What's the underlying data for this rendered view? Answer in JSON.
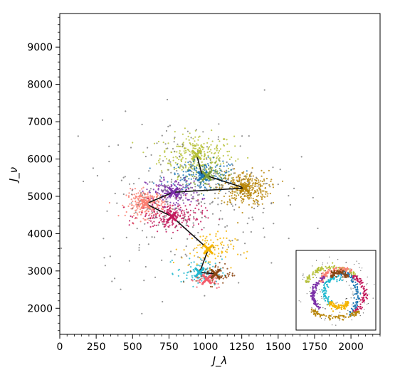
{
  "chart_data": {
    "type": "scatter",
    "title": "",
    "xlabel": "J_λ",
    "ylabel": "J_ν",
    "xlim": [
      0,
      2200
    ],
    "ylim": [
      1300,
      9900
    ],
    "x_ticks": [
      0,
      250,
      500,
      750,
      1000,
      1250,
      1500,
      1750,
      2000
    ],
    "y_ticks": [
      2000,
      3000,
      4000,
      5000,
      6000,
      7000,
      8000,
      9000
    ],
    "grid": false,
    "legend": "none",
    "clusters": [
      {
        "color": "#b7c23a",
        "center": [
          940,
          6110
        ],
        "spread": [
          230,
          520
        ],
        "count": 260
      },
      {
        "color": "#7d9d3a",
        "center": [
          1010,
          5550
        ],
        "spread": [
          170,
          330
        ],
        "count": 110
      },
      {
        "color": "#1f77b4",
        "center": [
          980,
          5540
        ],
        "spread": [
          230,
          380
        ],
        "count": 150
      },
      {
        "color": "#b8860b",
        "center": [
          1270,
          5220
        ],
        "spread": [
          150,
          420
        ],
        "count": 320
      },
      {
        "color": "#7b2fa8",
        "center": [
          780,
          5110
        ],
        "spread": [
          170,
          330
        ],
        "count": 170
      },
      {
        "color": "#fa8072",
        "center": [
          590,
          4800
        ],
        "spread": [
          120,
          330
        ],
        "count": 240
      },
      {
        "color": "#c2185b",
        "center": [
          770,
          4460
        ],
        "spread": [
          200,
          350
        ],
        "count": 210
      },
      {
        "color": "#f4b400",
        "center": [
          1020,
          3580
        ],
        "spread": [
          170,
          420
        ],
        "count": 90
      },
      {
        "color": "#22b8cf",
        "center": [
          960,
          2960
        ],
        "spread": [
          140,
          320
        ],
        "count": 80
      },
      {
        "color": "#8b4513",
        "center": [
          1070,
          2920
        ],
        "spread": [
          120,
          260
        ],
        "count": 60
      },
      {
        "color": "#f25c6b",
        "center": [
          1010,
          2780
        ],
        "spread": [
          110,
          230
        ],
        "count": 40
      },
      {
        "color": "#7f7f7f",
        "center": [
          900,
          5000
        ],
        "spread": [
          580,
          1900
        ],
        "count": 300
      }
    ],
    "path": [
      [
        940,
        6110
      ],
      [
        980,
        5540
      ],
      [
        1010,
        5550
      ],
      [
        1270,
        5220
      ],
      [
        780,
        5110
      ],
      [
        590,
        4800
      ],
      [
        770,
        4460
      ],
      [
        1020,
        3580
      ],
      [
        960,
        2960
      ],
      [
        1070,
        2920
      ],
      [
        1010,
        2780
      ]
    ],
    "path_markers": [
      {
        "x": 940,
        "y": 6110,
        "color": "#b7c23a"
      },
      {
        "x": 980,
        "y": 5540,
        "color": "#1f77b4"
      },
      {
        "x": 1010,
        "y": 5550,
        "color": "#7d9d3a"
      },
      {
        "x": 1270,
        "y": 5220,
        "color": "#b8860b"
      },
      {
        "x": 780,
        "y": 5110,
        "color": "#7b2fa8"
      },
      {
        "x": 590,
        "y": 4800,
        "color": "#fa8072"
      },
      {
        "x": 770,
        "y": 4460,
        "color": "#c2185b"
      },
      {
        "x": 1020,
        "y": 3580,
        "color": "#f4b400"
      },
      {
        "x": 960,
        "y": 2960,
        "color": "#22b8cf"
      },
      {
        "x": 1070,
        "y": 2920,
        "color": "#8b4513"
      },
      {
        "x": 1010,
        "y": 2780,
        "color": "#f25c6b"
      }
    ],
    "inset": {
      "description_colors": [
        "#b7c23a",
        "#fa8072",
        "#1f77b4",
        "#c2185b",
        "#b8860b",
        "#7b2fa8",
        "#22b8cf",
        "#f4b400",
        "#8b4513",
        "#7d9d3a",
        "#7f7f7f"
      ]
    }
  }
}
